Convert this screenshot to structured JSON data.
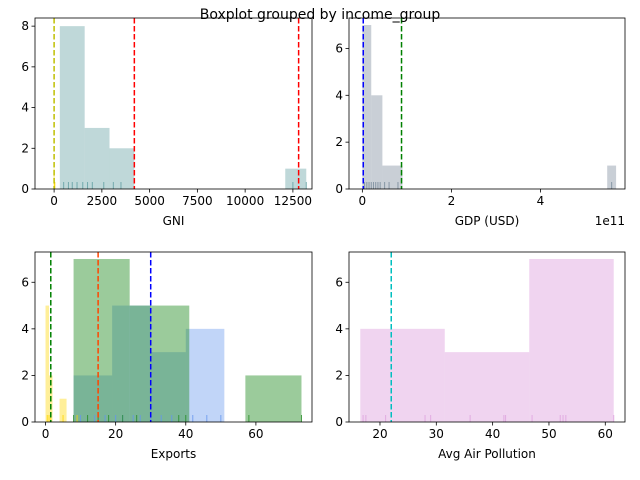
{
  "figure_title": "Boxplot grouped by income_group",
  "chart_data": [
    {
      "type": "histogram",
      "xlabel": "GNI",
      "xlim": [
        -1000,
        13500
      ],
      "ylim": [
        0,
        8.4
      ],
      "xticks": [
        0,
        2500,
        5000,
        7500,
        10000,
        12500
      ],
      "xtick_labels": [
        "0",
        "2500",
        "5000",
        "7500",
        "10000",
        "12500"
      ],
      "yticks": [
        0,
        2,
        4,
        6,
        8
      ],
      "ytick_labels": [
        "0",
        "2",
        "4",
        "6",
        "8"
      ],
      "offset_label": "",
      "bars": [
        {
          "x0": 300,
          "x1": 1600,
          "height": 8,
          "color": "#5f9ea0",
          "alpha": 0.4
        },
        {
          "x0": 1600,
          "x1": 2900,
          "height": 3,
          "color": "#5f9ea0",
          "alpha": 0.4
        },
        {
          "x0": 2900,
          "x1": 4200,
          "height": 2,
          "color": "#5f9ea0",
          "alpha": 0.4
        },
        {
          "x0": 12100,
          "x1": 13200,
          "height": 1,
          "color": "#5f9ea0",
          "alpha": 0.4
        },
        {
          "x0": -30,
          "x1": 30,
          "height": 1,
          "color": "#ffd700",
          "alpha": 0.5
        }
      ],
      "rugs": [
        {
          "values": [
            500,
            750,
            950,
            1200,
            1500,
            1750,
            2000,
            2600,
            3100,
            3500,
            12500,
            13200
          ],
          "color": "#5f9ea0"
        },
        {
          "values": [
            20,
            40
          ],
          "color": "#ffd700"
        }
      ],
      "vlines": [
        {
          "x": 4200,
          "color": "#ff0000"
        },
        {
          "x": 12800,
          "color": "#ff0000"
        },
        {
          "x": 0,
          "color": "#bfbf00"
        }
      ]
    },
    {
      "type": "histogram",
      "xlabel": "GDP (USD)",
      "xlim": [
        -0.3,
        5.9
      ],
      "ylim": [
        0,
        7.3
      ],
      "xticks": [
        0,
        2,
        4
      ],
      "xtick_labels": [
        "0",
        "2",
        "4"
      ],
      "yticks": [
        0,
        2,
        4,
        6
      ],
      "ytick_labels": [
        "0",
        "2",
        "4",
        "6"
      ],
      "offset_label": "1e11",
      "bars": [
        {
          "x0": 0.0,
          "x1": 0.2,
          "height": 7,
          "color": "#778899",
          "alpha": 0.4
        },
        {
          "x0": 0.2,
          "x1": 0.45,
          "height": 4,
          "color": "#778899",
          "alpha": 0.4
        },
        {
          "x0": 0.45,
          "x1": 0.9,
          "height": 1,
          "color": "#778899",
          "alpha": 0.4
        },
        {
          "x0": 5.5,
          "x1": 5.7,
          "height": 1,
          "color": "#778899",
          "alpha": 0.4
        }
      ],
      "rugs": [
        {
          "values": [
            0.05,
            0.1,
            0.15,
            0.2,
            0.25,
            0.3,
            0.35,
            0.4,
            0.5,
            0.6,
            0.8,
            5.6
          ],
          "color": "#778899"
        }
      ],
      "vlines": [
        {
          "x": 0.02,
          "color": "#0000ff"
        },
        {
          "x": 0.88,
          "color": "#008000"
        }
      ]
    },
    {
      "type": "histogram",
      "xlabel": "Exports",
      "xlim": [
        -3,
        76
      ],
      "ylim": [
        0,
        7.3
      ],
      "xticks": [
        0,
        20,
        40,
        60
      ],
      "xtick_labels": [
        "0",
        "20",
        "40",
        "60"
      ],
      "yticks": [
        0,
        2,
        4,
        6
      ],
      "ytick_labels": [
        "0",
        "2",
        "4",
        "6"
      ],
      "offset_label": "",
      "bars": [
        {
          "x0": 8,
          "x1": 19,
          "height": 2,
          "color": "#6495ed",
          "alpha": 0.4
        },
        {
          "x0": 19,
          "x1": 30,
          "height": 5,
          "color": "#6495ed",
          "alpha": 0.4
        },
        {
          "x0": 30,
          "x1": 40,
          "height": 3,
          "color": "#6495ed",
          "alpha": 0.4
        },
        {
          "x0": 40,
          "x1": 51,
          "height": 4,
          "color": "#6495ed",
          "alpha": 0.4
        },
        {
          "x0": 8,
          "x1": 24,
          "height": 7,
          "color": "#228b22",
          "alpha": 0.45
        },
        {
          "x0": 24,
          "x1": 41,
          "height": 5,
          "color": "#228b22",
          "alpha": 0.45
        },
        {
          "x0": 57,
          "x1": 73,
          "height": 2,
          "color": "#228b22",
          "alpha": 0.45
        },
        {
          "x0": 0,
          "x1": 1,
          "height": 5,
          "color": "#ffd700",
          "alpha": 0.4
        },
        {
          "x0": 1,
          "x1": 2,
          "height": 2,
          "color": "#ffd700",
          "alpha": 0.4
        },
        {
          "x0": 4,
          "x1": 6,
          "height": 1,
          "color": "#ffd700",
          "alpha": 0.4
        }
      ],
      "rugs": [
        {
          "values": [
            10,
            14,
            17,
            20,
            22,
            25,
            27,
            30,
            33,
            36,
            42,
            46,
            50
          ],
          "color": "#6495ed"
        },
        {
          "values": [
            8,
            12,
            15,
            18,
            22,
            26,
            38,
            40,
            58,
            73
          ],
          "color": "#228b22"
        },
        {
          "values": [
            0.5,
            1,
            1.5,
            5,
            9
          ],
          "color": "#ffd700"
        }
      ],
      "vlines": [
        {
          "x": 1.5,
          "color": "#008000"
        },
        {
          "x": 15,
          "color": "#ff4500"
        },
        {
          "x": 30,
          "color": "#0000ff"
        }
      ]
    },
    {
      "type": "histogram",
      "xlabel": "Avg Air Pollution",
      "xlim": [
        14.5,
        63.5
      ],
      "ylim": [
        0,
        7.3
      ],
      "xticks": [
        20,
        30,
        40,
        50,
        60
      ],
      "xtick_labels": [
        "20",
        "30",
        "40",
        "50",
        "60"
      ],
      "yticks": [
        0,
        2,
        4,
        6
      ],
      "ytick_labels": [
        "0",
        "2",
        "4",
        "6"
      ],
      "offset_label": "",
      "bars": [
        {
          "x0": 16.5,
          "x1": 31.5,
          "height": 4,
          "color": "#dda0dd",
          "alpha": 0.45
        },
        {
          "x0": 31.5,
          "x1": 46.5,
          "height": 3,
          "color": "#dda0dd",
          "alpha": 0.45
        },
        {
          "x0": 46.5,
          "x1": 61.5,
          "height": 7,
          "color": "#dda0dd",
          "alpha": 0.45
        }
      ],
      "rugs": [
        {
          "values": [
            17,
            17.5,
            21,
            28,
            29,
            36,
            42,
            42.3,
            47,
            52,
            52.5,
            53,
            61.5
          ],
          "color": "#dda0dd"
        }
      ],
      "vlines": [
        {
          "x": 22,
          "color": "#00bfbf"
        }
      ]
    }
  ]
}
